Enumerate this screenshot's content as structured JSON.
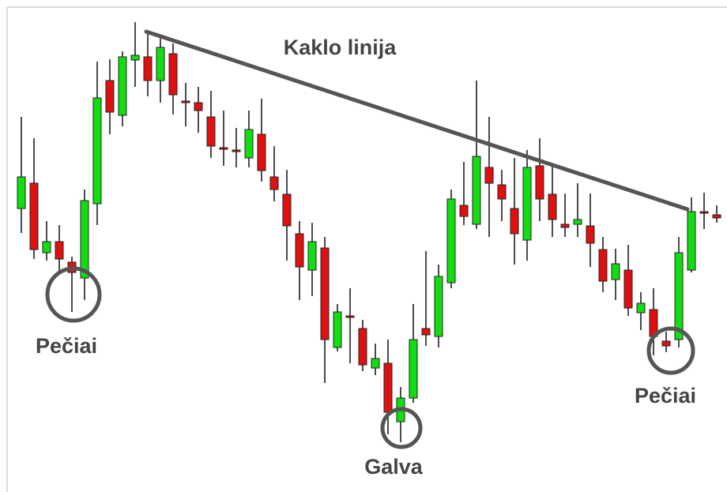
{
  "chart_data": {
    "type": "candlestick",
    "up_color": "#11dd11",
    "down_color": "#e01010",
    "ylim": [
      0,
      600
    ],
    "open": [
      336,
      368,
      280,
      294,
      268,
      248,
      342,
      498,
      454,
      524,
      528,
      498,
      532,
      472,
      470,
      452,
      413,
      410,
      400,
      430,
      376,
      354,
      304,
      258,
      286,
      160,
      200,
      184,
      134,
      140,
      66,
      96,
      184,
      174,
      242,
      340,
      316,
      388,
      366,
      336,
      296,
      390,
      354,
      316,
      316,
      314,
      284,
      246,
      258,
      204,
      208,
      168,
      170,
      258,
      332,
      328
    ],
    "high": [
      452,
      425,
      320,
      315,
      275,
      360,
      522,
      525,
      535,
      572,
      560,
      555,
      545,
      495,
      490,
      485,
      460,
      438,
      460,
      475,
      415,
      385,
      320,
      318,
      300,
      215,
      235,
      195,
      165,
      170,
      110,
      215,
      282,
      265,
      360,
      395,
      498,
      452,
      385,
      400,
      410,
      425,
      390,
      355,
      368,
      355,
      300,
      285,
      290,
      230,
      235,
      180,
      300,
      350,
      356,
      340
    ],
    "low": [
      305,
      272,
      270,
      255,
      205,
      220,
      315,
      430,
      440,
      490,
      478,
      470,
      455,
      440,
      432,
      400,
      390,
      388,
      388,
      370,
      345,
      270,
      220,
      225,
      115,
      155,
      140,
      130,
      125,
      50,
      40,
      90,
      162,
      160,
      235,
      315,
      310,
      300,
      320,
      265,
      270,
      320,
      300,
      300,
      300,
      262,
      230,
      220,
      200,
      182,
      150,
      154,
      160,
      255,
      310,
      318
    ],
    "close": [
      376,
      284,
      294,
      272,
      255,
      346,
      476,
      458,
      528,
      530,
      498,
      540,
      480,
      470,
      460,
      415,
      411,
      408,
      436,
      384,
      360,
      314,
      262,
      294,
      170,
      205,
      198,
      138,
      146,
      78,
      96,
      170,
      176,
      250,
      348,
      326,
      402,
      368,
      348,
      304,
      388,
      348,
      322,
      312,
      322,
      292,
      244,
      266,
      210,
      216,
      174,
      162,
      280,
      332,
      330,
      324
    ],
    "neckline": {
      "label": "Kaklo linija",
      "values": [
        560,
        335
      ],
      "color": "#555555"
    },
    "annotations": [
      "Pečiai",
      "Galva",
      "Pečiai"
    ]
  }
}
